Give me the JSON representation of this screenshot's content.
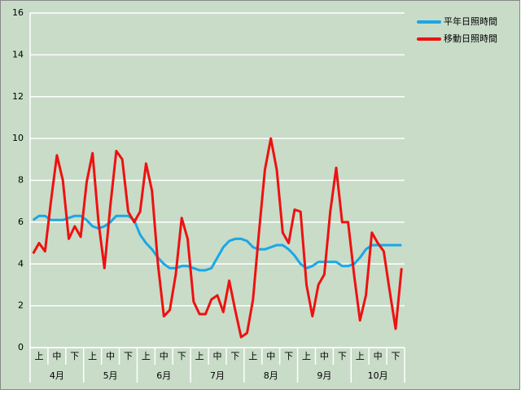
{
  "chart_data": {
    "type": "line",
    "categories": [
      null,
      "上",
      null,
      null,
      "中",
      null,
      null,
      "下",
      null,
      null,
      "上",
      null,
      null,
      "中",
      null,
      null,
      "下",
      null,
      null,
      "上",
      null,
      null,
      "中",
      null,
      null,
      "下",
      null,
      null,
      "上",
      null,
      null,
      "中",
      null,
      null,
      "下",
      null,
      null,
      "上",
      null,
      null,
      "中",
      null,
      null,
      "下",
      null,
      null,
      "上",
      null,
      null,
      "中",
      null,
      null,
      "下",
      null,
      null,
      "上",
      null,
      null,
      "中",
      null,
      null,
      "下",
      null
    ],
    "month_labels": [
      "4月",
      "5月",
      "6月",
      "7月",
      "8月",
      "9月",
      "10月"
    ],
    "series": [
      {
        "name": "平年日照時間",
        "color": "#1aa7e6",
        "values": [
          6.1,
          6.3,
          6.3,
          6.1,
          6.1,
          6.1,
          6.2,
          6.3,
          6.3,
          6.1,
          5.8,
          5.7,
          5.8,
          6.0,
          6.3,
          6.3,
          6.3,
          6.1,
          5.4,
          5.0,
          4.7,
          4.3,
          4.0,
          3.8,
          3.8,
          3.9,
          3.9,
          3.8,
          3.7,
          3.7,
          3.8,
          4.3,
          4.8,
          5.1,
          5.2,
          5.2,
          5.1,
          4.8,
          4.7,
          4.7,
          4.8,
          4.9,
          4.9,
          4.7,
          4.4,
          4.0,
          3.8,
          3.9,
          4.1,
          4.1,
          4.1,
          4.1,
          3.9,
          3.9,
          4.0,
          4.3,
          4.7,
          4.9,
          4.9,
          4.9,
          4.9,
          4.9,
          4.9
        ]
      },
      {
        "name": "移動日照時間",
        "color": "#ee1111",
        "values": [
          4.5,
          5.0,
          4.6,
          7.0,
          9.2,
          8.0,
          5.2,
          5.8,
          5.3,
          7.9,
          9.3,
          6.0,
          3.8,
          6.8,
          9.4,
          9.0,
          6.5,
          6.0,
          6.5,
          8.8,
          7.5,
          4.0,
          1.5,
          1.8,
          3.5,
          6.2,
          5.2,
          2.2,
          1.6,
          1.6,
          2.3,
          2.5,
          1.7,
          3.2,
          1.8,
          0.5,
          0.7,
          2.3,
          5.5,
          8.5,
          10.0,
          8.5,
          5.5,
          5.0,
          6.6,
          6.5,
          3.0,
          1.5,
          3.0,
          3.5,
          6.5,
          8.6,
          6.0,
          6.0,
          3.5,
          1.3,
          2.5,
          5.5,
          5.0,
          4.6,
          2.7,
          0.9,
          3.8
        ]
      }
    ],
    "ylim": [
      0,
      16
    ],
    "yticks": [
      0,
      2,
      4,
      6,
      8,
      10,
      12,
      14,
      16
    ],
    "grid": true
  }
}
